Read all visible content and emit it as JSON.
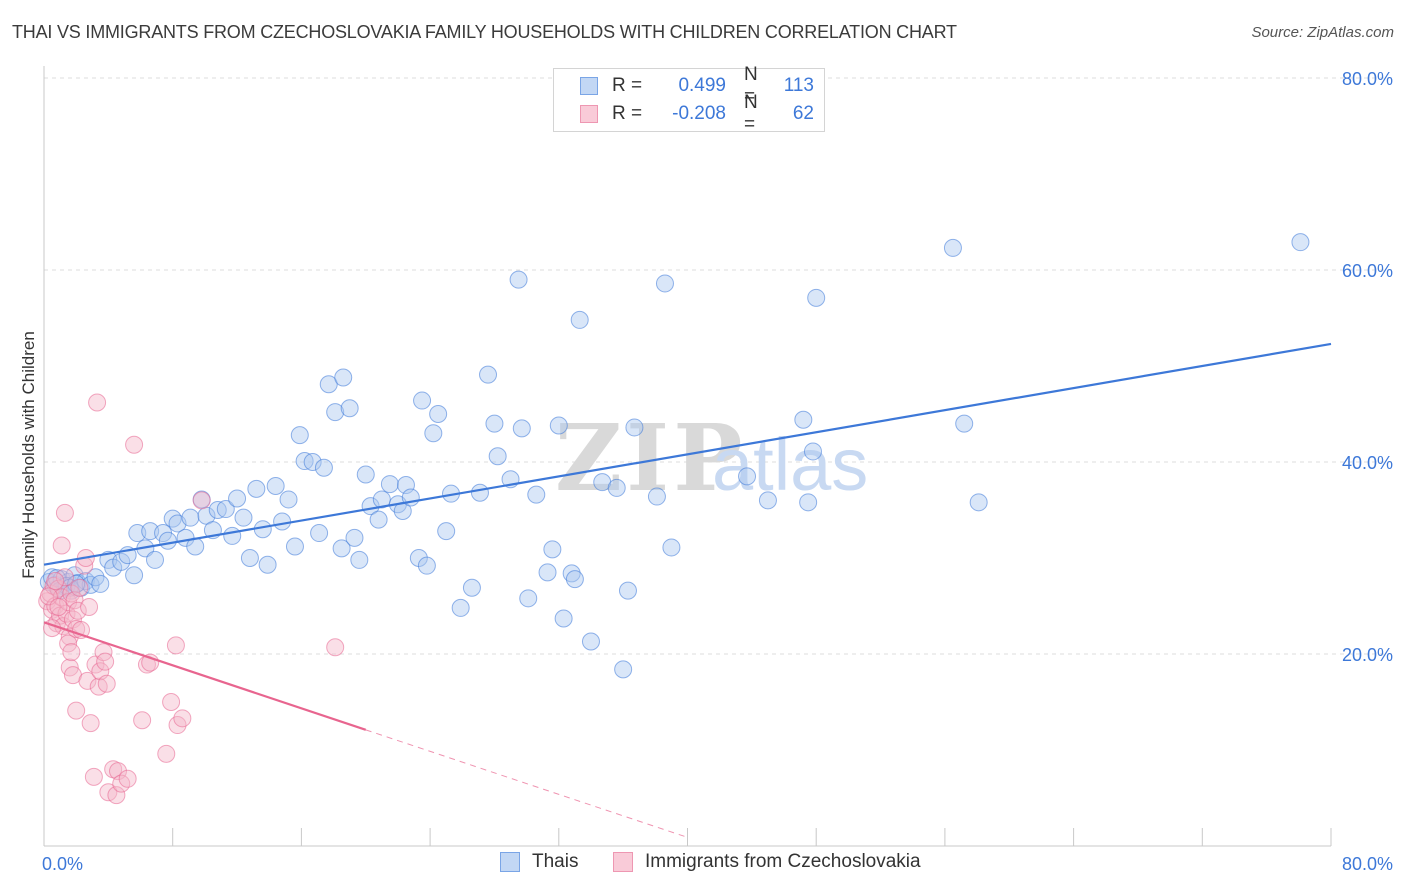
{
  "title": "THAI VS IMMIGRANTS FROM CZECHOSLOVAKIA FAMILY HOUSEHOLDS WITH CHILDREN CORRELATION CHART",
  "source": "Source: ZipAtlas.com",
  "watermark": "ZIPatlas",
  "colors": {
    "blue": "#3d78d8",
    "blue_fill": "#aac8f0",
    "pink": "#e8658f",
    "pink_fill": "#f5b8ca",
    "grid": "#dcdcdc"
  },
  "legend": {
    "rows": [
      {
        "r_label": "R =",
        "r_value": "0.499",
        "n_label": "N =",
        "n_value": "113",
        "color": "blue"
      },
      {
        "r_label": "R =",
        "r_value": "-0.208",
        "n_label": "N =",
        "n_value": "62",
        "color": "pink"
      }
    ]
  },
  "bottom_legend": [
    {
      "label": "Thais",
      "color": "blue"
    },
    {
      "label": "Immigrants from Czechoslovakia",
      "color": "pink"
    }
  ],
  "chart_data": {
    "type": "scatter",
    "title": "THAI VS IMMIGRANTS FROM CZECHOSLOVAKIA FAMILY HOUSEHOLDS WITH CHILDREN CORRELATION CHART",
    "xlabel": "",
    "ylabel": "Family Households with Children",
    "xlim": [
      0,
      80
    ],
    "ylim": [
      0,
      80
    ],
    "x_tick_labels": [
      "0.0%",
      "80.0%"
    ],
    "y_ticks": [
      20,
      40,
      60,
      80
    ],
    "y_tick_labels": [
      "20.0%",
      "40.0%",
      "60.0%",
      "80.0%"
    ],
    "grid": true,
    "legend_position": "top-center",
    "series": [
      {
        "name": "Thais",
        "color": "blue",
        "trend": {
          "x": [
            0,
            80
          ],
          "y": [
            29.3,
            52.3
          ],
          "dashed_from": null
        },
        "points": [
          [
            0.3,
            27.5
          ],
          [
            0.5,
            28.0
          ],
          [
            0.7,
            27.2
          ],
          [
            0.9,
            26.8
          ],
          [
            1.1,
            27.8
          ],
          [
            1.3,
            27.0
          ],
          [
            1.5,
            27.5
          ],
          [
            1.7,
            26.6
          ],
          [
            1.9,
            28.2
          ],
          [
            2.1,
            27.4
          ],
          [
            2.3,
            26.9
          ],
          [
            2.6,
            27.6
          ],
          [
            2.9,
            27.2
          ],
          [
            3.2,
            28.0
          ],
          [
            3.5,
            27.3
          ],
          [
            0.8,
            27.9
          ],
          [
            1.0,
            26.6
          ],
          [
            1.4,
            27.1
          ],
          [
            1.6,
            26.9
          ],
          [
            2.0,
            27.3
          ],
          [
            4.0,
            29.8
          ],
          [
            4.3,
            29.0
          ],
          [
            4.8,
            29.6
          ],
          [
            5.2,
            30.3
          ],
          [
            5.6,
            28.2
          ],
          [
            5.8,
            32.6
          ],
          [
            6.3,
            31.0
          ],
          [
            6.6,
            32.8
          ],
          [
            6.9,
            29.8
          ],
          [
            7.4,
            32.6
          ],
          [
            7.7,
            31.8
          ],
          [
            8.0,
            34.1
          ],
          [
            8.3,
            33.6
          ],
          [
            8.8,
            32.1
          ],
          [
            9.1,
            34.2
          ],
          [
            9.4,
            31.2
          ],
          [
            9.8,
            36.1
          ],
          [
            10.1,
            34.4
          ],
          [
            10.5,
            32.9
          ],
          [
            10.8,
            35.0
          ],
          [
            11.3,
            35.1
          ],
          [
            11.7,
            32.3
          ],
          [
            12.0,
            36.2
          ],
          [
            12.4,
            34.2
          ],
          [
            12.8,
            30.0
          ],
          [
            13.2,
            37.2
          ],
          [
            13.6,
            33.0
          ],
          [
            13.9,
            29.3
          ],
          [
            14.4,
            37.5
          ],
          [
            14.8,
            33.8
          ],
          [
            15.2,
            36.1
          ],
          [
            15.6,
            31.2
          ],
          [
            15.9,
            42.8
          ],
          [
            16.2,
            40.1
          ],
          [
            16.7,
            40.0
          ],
          [
            17.1,
            32.6
          ],
          [
            17.4,
            39.4
          ],
          [
            17.7,
            48.1
          ],
          [
            18.1,
            45.2
          ],
          [
            18.5,
            31.0
          ],
          [
            18.6,
            48.8
          ],
          [
            19.0,
            45.6
          ],
          [
            19.3,
            32.1
          ],
          [
            19.6,
            29.8
          ],
          [
            20.0,
            38.7
          ],
          [
            20.3,
            35.4
          ],
          [
            20.8,
            34.0
          ],
          [
            21.0,
            36.1
          ],
          [
            21.5,
            37.7
          ],
          [
            22.0,
            35.6
          ],
          [
            22.3,
            34.9
          ],
          [
            22.5,
            37.6
          ],
          [
            22.8,
            36.3
          ],
          [
            23.3,
            30.0
          ],
          [
            23.5,
            46.4
          ],
          [
            23.8,
            29.2
          ],
          [
            24.2,
            43.0
          ],
          [
            24.5,
            45.0
          ],
          [
            25.0,
            32.8
          ],
          [
            25.3,
            36.7
          ],
          [
            25.9,
            24.8
          ],
          [
            26.6,
            26.9
          ],
          [
            27.1,
            36.8
          ],
          [
            27.6,
            49.1
          ],
          [
            28.0,
            44.0
          ],
          [
            28.2,
            40.6
          ],
          [
            29.0,
            38.2
          ],
          [
            29.5,
            59.0
          ],
          [
            29.7,
            43.5
          ],
          [
            30.1,
            25.8
          ],
          [
            30.6,
            36.6
          ],
          [
            31.3,
            28.5
          ],
          [
            31.6,
            30.9
          ],
          [
            32.0,
            43.8
          ],
          [
            32.3,
            23.7
          ],
          [
            32.8,
            28.4
          ],
          [
            33.0,
            27.8
          ],
          [
            33.3,
            54.8
          ],
          [
            34.0,
            21.3
          ],
          [
            34.7,
            37.9
          ],
          [
            35.6,
            37.3
          ],
          [
            36.0,
            18.4
          ],
          [
            36.3,
            26.6
          ],
          [
            36.7,
            43.6
          ],
          [
            38.1,
            36.4
          ],
          [
            38.6,
            58.6
          ],
          [
            39.0,
            31.1
          ],
          [
            43.7,
            38.5
          ],
          [
            45.0,
            36.0
          ],
          [
            47.2,
            44.4
          ],
          [
            47.5,
            35.8
          ],
          [
            47.8,
            41.1
          ],
          [
            48.0,
            57.1
          ],
          [
            56.5,
            62.3
          ],
          [
            57.2,
            44.0
          ],
          [
            58.1,
            35.8
          ],
          [
            78.1,
            62.9
          ]
        ]
      },
      {
        "name": "Immigrants from Czechoslovakia",
        "color": "pink",
        "trend": {
          "x": [
            0,
            20,
            40
          ],
          "y": [
            23.3,
            12.1,
            0.9
          ],
          "dashed_from": 20
        },
        "points": [
          [
            0.2,
            25.5
          ],
          [
            0.4,
            26.3
          ],
          [
            0.5,
            24.6
          ],
          [
            0.6,
            27.1
          ],
          [
            0.7,
            25.0
          ],
          [
            0.8,
            23.2
          ],
          [
            0.9,
            26.8
          ],
          [
            1.0,
            24.0
          ],
          [
            1.1,
            25.9
          ],
          [
            1.2,
            22.9
          ],
          [
            1.3,
            28.0
          ],
          [
            1.4,
            24.2
          ],
          [
            1.5,
            25.4
          ],
          [
            1.6,
            21.8
          ],
          [
            1.7,
            26.3
          ],
          [
            1.8,
            23.6
          ],
          [
            1.9,
            25.6
          ],
          [
            2.0,
            22.6
          ],
          [
            2.1,
            24.5
          ],
          [
            2.2,
            26.9
          ],
          [
            0.3,
            26.0
          ],
          [
            0.5,
            22.7
          ],
          [
            0.7,
            27.6
          ],
          [
            0.9,
            24.9
          ],
          [
            1.1,
            31.3
          ],
          [
            1.3,
            34.7
          ],
          [
            1.5,
            21.1
          ],
          [
            1.6,
            18.6
          ],
          [
            1.7,
            20.2
          ],
          [
            1.8,
            17.8
          ],
          [
            2.0,
            14.1
          ],
          [
            2.3,
            22.5
          ],
          [
            2.5,
            29.2
          ],
          [
            2.6,
            30.0
          ],
          [
            2.7,
            17.2
          ],
          [
            2.8,
            24.9
          ],
          [
            2.9,
            12.8
          ],
          [
            3.1,
            7.2
          ],
          [
            3.2,
            18.9
          ],
          [
            3.3,
            46.2
          ],
          [
            3.4,
            16.6
          ],
          [
            3.5,
            18.2
          ],
          [
            3.7,
            20.2
          ],
          [
            3.8,
            19.2
          ],
          [
            3.9,
            16.9
          ],
          [
            4.0,
            5.6
          ],
          [
            4.3,
            8.0
          ],
          [
            4.5,
            5.3
          ],
          [
            4.6,
            7.8
          ],
          [
            4.8,
            6.5
          ],
          [
            5.2,
            7.0
          ],
          [
            5.6,
            41.8
          ],
          [
            6.1,
            13.1
          ],
          [
            6.4,
            18.9
          ],
          [
            6.6,
            19.1
          ],
          [
            7.6,
            9.6
          ],
          [
            7.9,
            15.0
          ],
          [
            8.2,
            20.9
          ],
          [
            8.3,
            12.6
          ],
          [
            8.6,
            13.3
          ],
          [
            9.8,
            36.0
          ],
          [
            18.1,
            20.7
          ]
        ]
      }
    ]
  }
}
